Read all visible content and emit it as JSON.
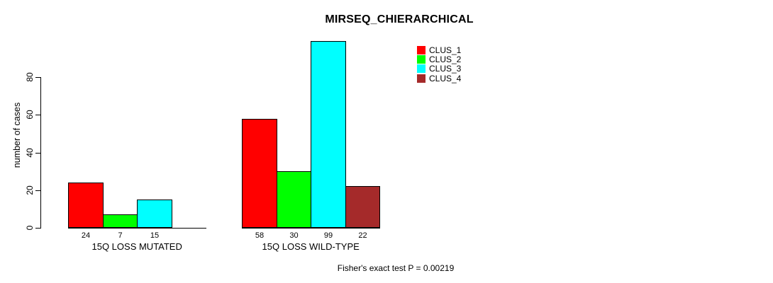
{
  "title": "MIRSEQ_CHIERARCHICAL",
  "footer": "Fisher's exact test P = 0.00219",
  "chart_data": {
    "type": "bar",
    "title": "MIRSEQ_CHIERARCHICAL",
    "xlabel": "",
    "ylabel": "number of cases",
    "ylim": [
      0,
      100
    ],
    "yticks": [
      0,
      20,
      40,
      60,
      80
    ],
    "grid": false,
    "legend_position": "top-right",
    "categories": [
      "15Q LOSS MUTATED",
      "15Q LOSS WILD-TYPE"
    ],
    "series": [
      {
        "name": "CLUS_1",
        "color": "#ff0000",
        "values": [
          24,
          58
        ]
      },
      {
        "name": "CLUS_2",
        "color": "#00ff00",
        "values": [
          7,
          30
        ]
      },
      {
        "name": "CLUS_3",
        "color": "#00ffff",
        "values": [
          15,
          99
        ]
      },
      {
        "name": "CLUS_4",
        "color": "#a52a2a",
        "values": [
          null,
          22
        ]
      }
    ],
    "bar_value_labels": [
      "24",
      "7",
      "15",
      "58",
      "30",
      "99",
      "22"
    ],
    "annotation": "Fisher's exact test P = 0.00219"
  }
}
